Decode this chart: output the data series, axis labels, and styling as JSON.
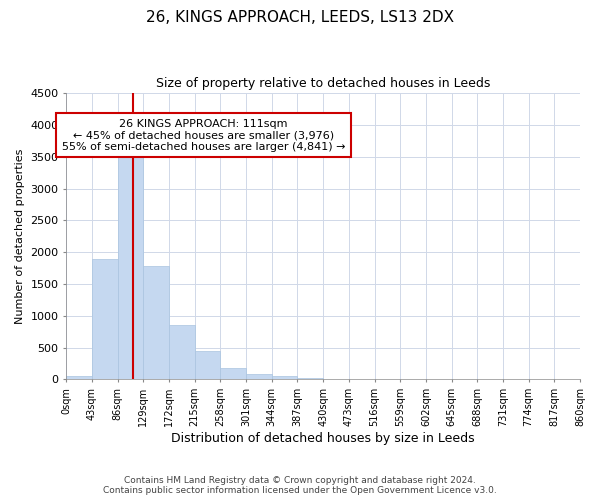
{
  "title": "26, KINGS APPROACH, LEEDS, LS13 2DX",
  "subtitle": "Size of property relative to detached houses in Leeds",
  "xlabel": "Distribution of detached houses by size in Leeds",
  "ylabel": "Number of detached properties",
  "bar_edges": [
    0,
    43,
    86,
    129,
    172,
    215,
    258,
    301,
    344,
    387,
    430,
    473,
    516,
    559,
    602,
    645,
    688,
    731,
    774,
    817,
    860
  ],
  "bar_heights": [
    50,
    1900,
    3500,
    1780,
    860,
    450,
    175,
    90,
    50,
    20,
    0,
    0,
    0,
    0,
    0,
    0,
    0,
    0,
    0,
    0
  ],
  "bar_color": "#c5d8f0",
  "bar_edge_color": "#aac4e0",
  "property_line_x": 111,
  "property_line_color": "#cc0000",
  "annotation_text": "26 KINGS APPROACH: 111sqm\n← 45% of detached houses are smaller (3,976)\n55% of semi-detached houses are larger (4,841) →",
  "annotation_box_color": "#cc0000",
  "ylim": [
    0,
    4500
  ],
  "yticks": [
    0,
    500,
    1000,
    1500,
    2000,
    2500,
    3000,
    3500,
    4000,
    4500
  ],
  "tick_labels": [
    "0sqm",
    "43sqm",
    "86sqm",
    "129sqm",
    "172sqm",
    "215sqm",
    "258sqm",
    "301sqm",
    "344sqm",
    "387sqm",
    "430sqm",
    "473sqm",
    "516sqm",
    "559sqm",
    "602sqm",
    "645sqm",
    "688sqm",
    "731sqm",
    "774sqm",
    "817sqm",
    "860sqm"
  ],
  "footer_line1": "Contains HM Land Registry data © Crown copyright and database right 2024.",
  "footer_line2": "Contains public sector information licensed under the Open Government Licence v3.0.",
  "background_color": "#ffffff",
  "grid_color": "#d0d8e8",
  "title_fontsize": 11,
  "subtitle_fontsize": 9,
  "ylabel_fontsize": 8,
  "xlabel_fontsize": 9,
  "tick_fontsize": 7,
  "ytick_fontsize": 8,
  "annotation_fontsize": 8,
  "footer_fontsize": 6.5
}
